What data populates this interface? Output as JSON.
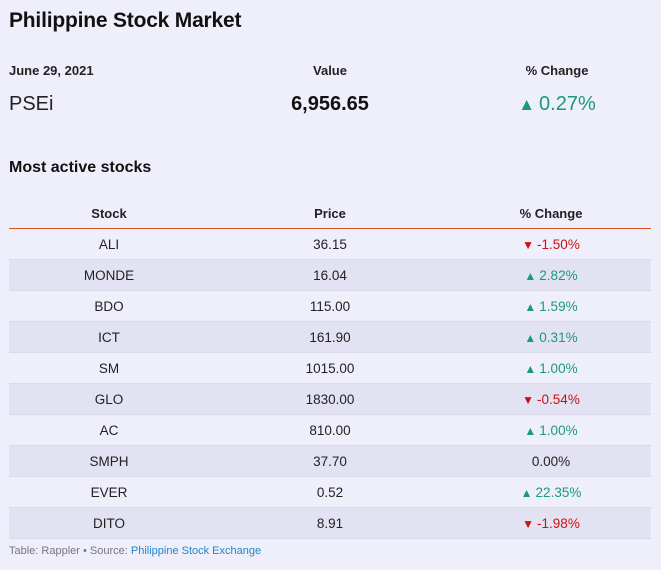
{
  "title": "Philippine Stock Market",
  "summary": {
    "date": "June 29, 2021",
    "value_header": "Value",
    "change_header": "% Change",
    "index_name": "PSEi",
    "index_value": "6,956.65",
    "index_change": "0.27%",
    "index_direction": "up"
  },
  "section_title": "Most active stocks",
  "table": {
    "headers": [
      "Stock",
      "Price",
      "% Change"
    ],
    "rows": [
      {
        "stock": "ALI",
        "price": "36.15",
        "change": "-1.50%",
        "direction": "down"
      },
      {
        "stock": "MONDE",
        "price": "16.04",
        "change": "2.82%",
        "direction": "up"
      },
      {
        "stock": "BDO",
        "price": "115.00",
        "change": "1.59%",
        "direction": "up"
      },
      {
        "stock": "ICT",
        "price": "161.90",
        "change": "0.31%",
        "direction": "up"
      },
      {
        "stock": "SM",
        "price": "1015.00",
        "change": "1.00%",
        "direction": "up"
      },
      {
        "stock": "GLO",
        "price": "1830.00",
        "change": "-0.54%",
        "direction": "down"
      },
      {
        "stock": "AC",
        "price": "810.00",
        "change": "1.00%",
        "direction": "up"
      },
      {
        "stock": "SMPH",
        "price": "37.70",
        "change": "0.00%",
        "direction": "flat"
      },
      {
        "stock": "EVER",
        "price": "0.52",
        "change": "22.35%",
        "direction": "up"
      },
      {
        "stock": "DITO",
        "price": "8.91",
        "change": "-1.98%",
        "direction": "down"
      }
    ]
  },
  "footer": {
    "prefix": "Table: Rappler • Source: ",
    "source_link": "Philippine Stock Exchange"
  },
  "colors": {
    "background": "#efeffc",
    "up": "#1a9a78",
    "down": "#cc1111",
    "header_rule": "#d9541e",
    "link": "#1a86c8"
  }
}
